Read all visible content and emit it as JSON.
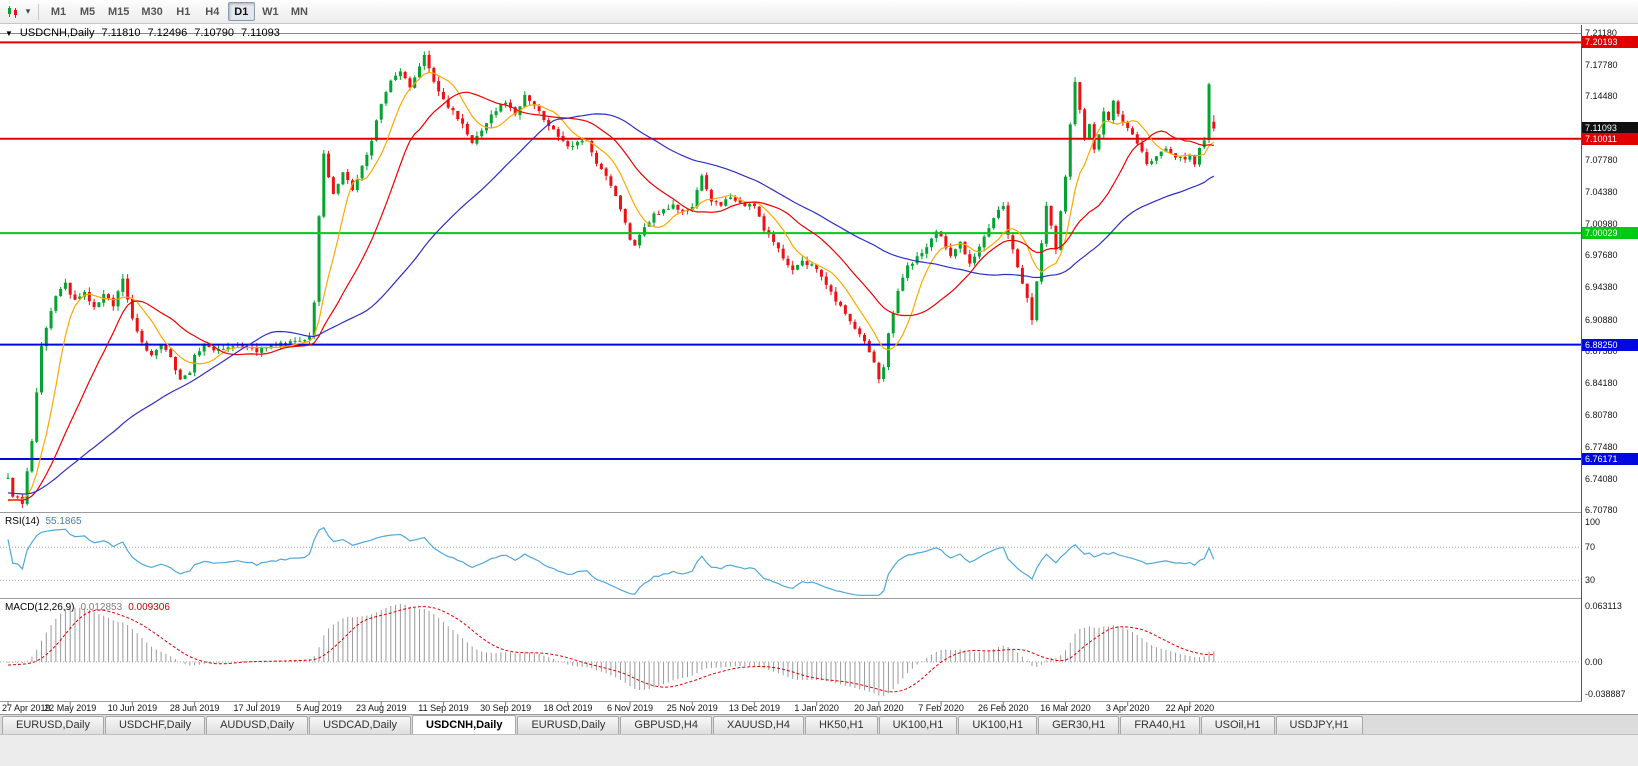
{
  "toolbar": {
    "timeframes": [
      {
        "label": "M1",
        "active": false
      },
      {
        "label": "M5",
        "active": false
      },
      {
        "label": "M15",
        "active": false
      },
      {
        "label": "M30",
        "active": false
      },
      {
        "label": "H1",
        "active": false
      },
      {
        "label": "H4",
        "active": false
      },
      {
        "label": "D1",
        "active": true
      },
      {
        "label": "W1",
        "active": false
      },
      {
        "label": "MN",
        "active": false
      }
    ],
    "dropdown_caret": "▾"
  },
  "chart_header": {
    "arrow_icon": "▼",
    "symbol": "USDCNH,Daily",
    "open": "7.11810",
    "high": "7.12496",
    "low": "7.10790",
    "close": "7.11093"
  },
  "indicator_labels": {
    "rsi_name": "RSI(14)",
    "rsi_value": "55.1865",
    "macd_name": "MACD(12,26,9)",
    "macd_main": "0.012853",
    "macd_signal": "0.009306",
    "macd_axis_top": "0.063113",
    "macd_axis_zero": "0.00",
    "macd_axis_bottom": "-0.038887"
  },
  "colors": {
    "bull": "#00a42e",
    "bear": "#ed1111",
    "background": "#ffffff",
    "scale_text": "#111111"
  },
  "tabs": [
    {
      "label": "EURUSD,Daily",
      "active": false
    },
    {
      "label": "USDCHF,Daily",
      "active": false
    },
    {
      "label": "AUDUSD,Daily",
      "active": false
    },
    {
      "label": "USDCAD,Daily",
      "active": false
    },
    {
      "label": "USDCNH,Daily",
      "active": true
    },
    {
      "label": "EURUSD,Daily",
      "active": false
    },
    {
      "label": "GBPUSD,H4",
      "active": false
    },
    {
      "label": "XAUUSD,H4",
      "active": false
    },
    {
      "label": "HK50,H1",
      "active": false
    },
    {
      "label": "UK100,H1",
      "active": false
    },
    {
      "label": "UK100,H1",
      "active": false
    },
    {
      "label": "GER30,H1",
      "active": false
    },
    {
      "label": "FRA40,H1",
      "active": false
    },
    {
      "label": "USOil,H1",
      "active": false
    },
    {
      "label": "USDJPY,H1",
      "active": false
    }
  ],
  "chart_data": {
    "type": "candlestick",
    "symbol": "USDCNH",
    "timeframe": "Daily",
    "last_ohlc": {
      "open": 7.1181,
      "high": 7.12496,
      "low": 7.1079,
      "close": 7.11093
    },
    "y_range": [
      6.7078,
      7.2118
    ],
    "bars": 253,
    "bar_spacing": 4.785,
    "x_label_step_bars": 13,
    "x_labels": [
      "27 Apr 2019",
      "22 May 2019",
      "10 Jun 2019",
      "28 Jun 2019",
      "17 Jul 2019",
      "5 Aug 2019",
      "23 Aug 2019",
      "11 Sep 2019",
      "30 Sep 2019",
      "18 Oct 2019",
      "6 Nov 2019",
      "25 Nov 2019",
      "13 Dec 2019",
      "1 Jan 2020",
      "20 Jan 2020",
      "7 Feb 2020",
      "26 Feb 2020",
      "16 Mar 2020",
      "3 Apr 2020",
      "22 Apr 2020"
    ],
    "y_ticks": [
      {
        "label": "7.21180",
        "value": 7.2118
      },
      {
        "label": "7.17780",
        "value": 7.1778
      },
      {
        "label": "7.14480",
        "value": 7.1448
      },
      {
        "label": "7.07780",
        "value": 7.0778
      },
      {
        "label": "7.04380",
        "value": 7.0438
      },
      {
        "label": "7.00980",
        "value": 7.0098
      },
      {
        "label": "6.97680",
        "value": 6.9768
      },
      {
        "label": "6.94380",
        "value": 6.9438
      },
      {
        "label": "6.90880",
        "value": 6.9088
      },
      {
        "label": "6.87580",
        "value": 6.8758
      },
      {
        "label": "6.84180",
        "value": 6.8418
      },
      {
        "label": "6.80780",
        "value": 6.8078
      },
      {
        "label": "6.77480",
        "value": 6.7748
      },
      {
        "label": "6.74080",
        "value": 6.7408
      },
      {
        "label": "6.70780",
        "value": 6.7078
      }
    ],
    "price_tags": [
      {
        "label": "7.20193",
        "value": 7.20193,
        "bg": "#e00000",
        "line": true
      },
      {
        "label": "7.11093",
        "value": 7.11093,
        "bg": "#101010",
        "line": false
      },
      {
        "label": "7.10011",
        "value": 7.10011,
        "bg": "#e00000",
        "line": true
      },
      {
        "label": "7.00029",
        "value": 7.00029,
        "bg": "#00ca12",
        "line": true
      },
      {
        "label": "6.88250",
        "value": 6.8825,
        "bg": "#0008e0",
        "line": true
      },
      {
        "label": "6.76171",
        "value": 6.76171,
        "bg": "#0008e0",
        "line": true
      }
    ],
    "series": {
      "seed": 9,
      "noise": 0.0022,
      "wick": 0.005,
      "prehistory": {
        "bars": 60,
        "from": 6.745,
        "to": 6.712
      },
      "anchors": [
        [
          0,
          6.74
        ],
        [
          1,
          6.724
        ],
        [
          3,
          6.716
        ],
        [
          5,
          6.78
        ],
        [
          7,
          6.88
        ],
        [
          10,
          6.935
        ],
        [
          12,
          6.946
        ],
        [
          14,
          6.928
        ],
        [
          16,
          6.937
        ],
        [
          18,
          6.921
        ],
        [
          20,
          6.935
        ],
        [
          22,
          6.925
        ],
        [
          24,
          6.952
        ],
        [
          26,
          6.91
        ],
        [
          28,
          6.885
        ],
        [
          30,
          6.87
        ],
        [
          32,
          6.882
        ],
        [
          34,
          6.868
        ],
        [
          36,
          6.847
        ],
        [
          38,
          6.852
        ],
        [
          39,
          6.873
        ],
        [
          41,
          6.88
        ],
        [
          44,
          6.878
        ],
        [
          48,
          6.884
        ],
        [
          52,
          6.876
        ],
        [
          56,
          6.882
        ],
        [
          60,
          6.885
        ],
        [
          63,
          6.89
        ],
        [
          64,
          6.925
        ],
        [
          65,
          7.02
        ],
        [
          66,
          7.085
        ],
        [
          67,
          7.06
        ],
        [
          68,
          7.04
        ],
        [
          70,
          7.065
        ],
        [
          72,
          7.045
        ],
        [
          74,
          7.07
        ],
        [
          76,
          7.1
        ],
        [
          78,
          7.135
        ],
        [
          80,
          7.16
        ],
        [
          82,
          7.17
        ],
        [
          84,
          7.155
        ],
        [
          86,
          7.175
        ],
        [
          87,
          7.19
        ],
        [
          89,
          7.16
        ],
        [
          91,
          7.14
        ],
        [
          93,
          7.13
        ],
        [
          95,
          7.115
        ],
        [
          97,
          7.095
        ],
        [
          99,
          7.11
        ],
        [
          101,
          7.125
        ],
        [
          104,
          7.14
        ],
        [
          106,
          7.125
        ],
        [
          108,
          7.148
        ],
        [
          110,
          7.135
        ],
        [
          112,
          7.12
        ],
        [
          114,
          7.11
        ],
        [
          117,
          7.09
        ],
        [
          119,
          7.095
        ],
        [
          121,
          7.1
        ],
        [
          123,
          7.075
        ],
        [
          125,
          7.06
        ],
        [
          127,
          7.04
        ],
        [
          129,
          7.01
        ],
        [
          130,
          6.995
        ],
        [
          131,
          6.988
        ],
        [
          133,
          7.005
        ],
        [
          135,
          7.02
        ],
        [
          137,
          7.025
        ],
        [
          139,
          7.03
        ],
        [
          141,
          7.022
        ],
        [
          143,
          7.028
        ],
        [
          145,
          7.06
        ],
        [
          147,
          7.035
        ],
        [
          149,
          7.028
        ],
        [
          151,
          7.04
        ],
        [
          153,
          7.032
        ],
        [
          156,
          7.028
        ],
        [
          158,
          7.005
        ],
        [
          160,
          6.99
        ],
        [
          162,
          6.975
        ],
        [
          164,
          6.962
        ],
        [
          166,
          6.97
        ],
        [
          169,
          6.963
        ],
        [
          171,
          6.945
        ],
        [
          173,
          6.93
        ],
        [
          175,
          6.915
        ],
        [
          177,
          6.9
        ],
        [
          179,
          6.885
        ],
        [
          181,
          6.862
        ],
        [
          182,
          6.845
        ],
        [
          183,
          6.86
        ],
        [
          184,
          6.895
        ],
        [
          186,
          6.94
        ],
        [
          188,
          6.965
        ],
        [
          190,
          6.975
        ],
        [
          192,
          6.985
        ],
        [
          194,
          7.0
        ],
        [
          195,
          6.995
        ],
        [
          197,
          6.975
        ],
        [
          199,
          6.992
        ],
        [
          201,
          6.968
        ],
        [
          203,
          6.985
        ],
        [
          205,
          7.005
        ],
        [
          207,
          7.025
        ],
        [
          208,
          7.03
        ],
        [
          209,
          7.0
        ],
        [
          211,
          6.965
        ],
        [
          213,
          6.93
        ],
        [
          214,
          6.91
        ],
        [
          215,
          6.95
        ],
        [
          216,
          6.99
        ],
        [
          217,
          7.03
        ],
        [
          218,
          7.01
        ],
        [
          219,
          6.985
        ],
        [
          221,
          7.06
        ],
        [
          222,
          7.115
        ],
        [
          223,
          7.16
        ],
        [
          224,
          7.13
        ],
        [
          225,
          7.1
        ],
        [
          226,
          7.115
        ],
        [
          227,
          7.09
        ],
        [
          228,
          7.105
        ],
        [
          229,
          7.13
        ],
        [
          230,
          7.12
        ],
        [
          231,
          7.14
        ],
        [
          232,
          7.125
        ],
        [
          234,
          7.11
        ],
        [
          236,
          7.095
        ],
        [
          238,
          7.075
        ],
        [
          240,
          7.08
        ],
        [
          242,
          7.09
        ],
        [
          244,
          7.082
        ],
        [
          246,
          7.077
        ],
        [
          247,
          7.082
        ],
        [
          248,
          7.075
        ],
        [
          249,
          7.09
        ],
        [
          250,
          7.1
        ],
        [
          251,
          7.158
        ],
        [
          252,
          7.111
        ]
      ]
    },
    "moving_averages": [
      {
        "period": 8,
        "color": "#ffa800"
      },
      {
        "period": 20,
        "color": "#f00000"
      },
      {
        "period": 50,
        "color": "#2e2ec8"
      }
    ],
    "rsi": {
      "period": 14,
      "color": "#4fa8dc",
      "levels": [
        100,
        70,
        30
      ]
    },
    "macd": {
      "fast": 12,
      "slow": 26,
      "signal": 9,
      "hist_color": "#9a9a9a",
      "signal_color": "#e00000"
    }
  }
}
